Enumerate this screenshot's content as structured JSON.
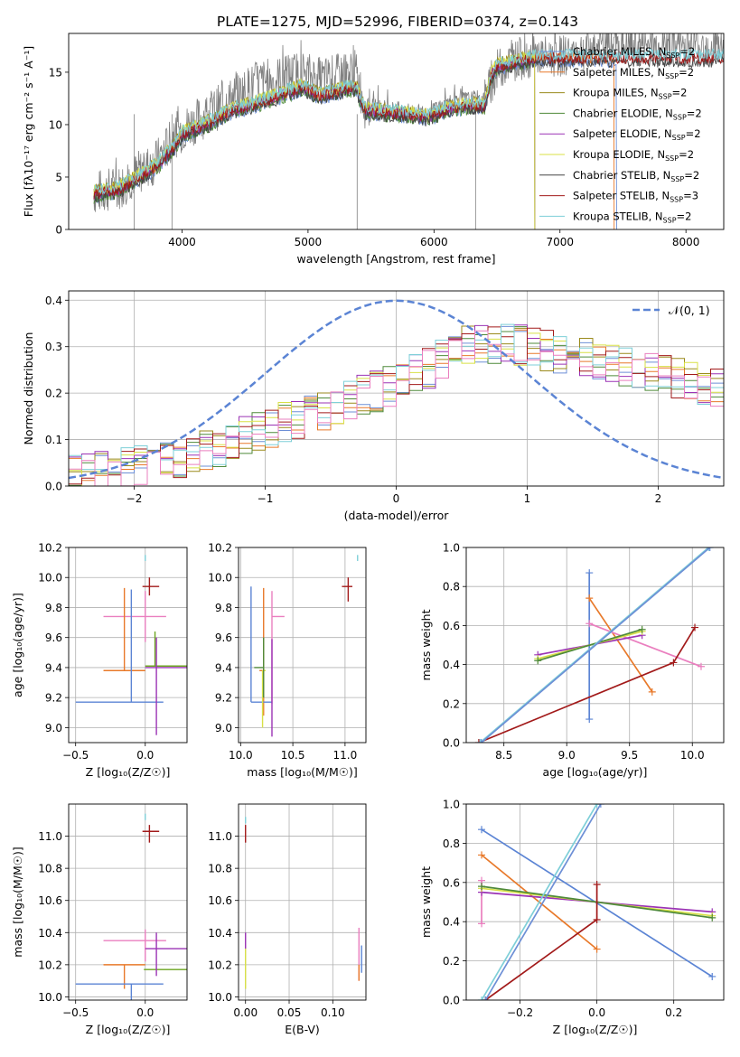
{
  "figure_title": "PLATE=1275, MJD=52996, FIBERID=0374, z=0.143",
  "colors": {
    "chabrier_miles": "#6d8fd6",
    "salpeter_miles": "#e8792a",
    "kroupa_miles": "#9a8a1c",
    "chabrier_elodie": "#4f8a3a",
    "salpeter_elodie": "#9b33b5",
    "kroupa_elodie": "#d8e046",
    "chabrier_stelib": "#444444",
    "salpeter_stelib": "#a21a1a",
    "kroupa_stelib": "#7ecfd8",
    "data": "#808080",
    "pink": "#ea7fbf",
    "gauss": "#5b84d4",
    "olive": "#6ba51f"
  },
  "chart_data": [
    {
      "id": "spectrum",
      "type": "line",
      "xlabel": "wavelength [Angstrom, rest frame]",
      "ylabel": "Flux [fλ10⁻¹⁷ erg cm⁻² s⁻¹ A⁻¹]",
      "xlim": [
        3100,
        8300
      ],
      "ylim": [
        0,
        18.7
      ],
      "xticks": [
        4000,
        5000,
        6000,
        7000,
        8000
      ],
      "yticks": [
        0,
        5,
        10,
        15
      ],
      "grid": false,
      "legend_position": "top-right",
      "data_anchors": {
        "x": [
          3300,
          3500,
          3600,
          3800,
          3950,
          4000,
          4200,
          4400,
          4600,
          4800,
          4950,
          5100,
          5300,
          5380,
          5450,
          5600,
          5800,
          5950,
          6150,
          6350,
          6400,
          6500,
          6600,
          6800,
          7000,
          7200,
          7400
        ],
        "y": [
          3.5,
          4.0,
          5.0,
          6.5,
          9.0,
          9.5,
          11.0,
          12.5,
          14.0,
          14.5,
          15.0,
          14.3,
          14.8,
          15.0,
          11.8,
          11.6,
          11.3,
          11.0,
          12.3,
          12.5,
          12.5,
          15.2,
          16.0,
          16.5,
          16.5,
          17.2,
          17.5
        ]
      },
      "model_anchors": {
        "x": [
          3300,
          3500,
          3600,
          3800,
          3950,
          4000,
          4200,
          4400,
          4600,
          4800,
          4950,
          5100,
          5300,
          5380,
          5450,
          5600,
          5800,
          5950,
          6150,
          6350,
          6400,
          6450,
          6500,
          6700,
          6800
        ],
        "y": [
          3.3,
          3.8,
          4.5,
          6.0,
          8.0,
          9.0,
          10.0,
          11.3,
          12.0,
          12.8,
          13.5,
          12.7,
          13.3,
          13.5,
          11.3,
          11.1,
          10.9,
          10.6,
          11.6,
          11.8,
          11.6,
          14.5,
          15.5,
          16.0,
          16.3
        ]
      },
      "series": [
        {
          "key": "chabrier_miles",
          "legend": "Chabrier MILES, N",
          "sub": "SSP",
          "n": "=2",
          "xmax": 7450
        },
        {
          "key": "salpeter_miles",
          "legend": "Salpeter MILES, N",
          "sub": "SSP",
          "n": "=2",
          "xmax": 7430
        },
        {
          "key": "kroupa_miles",
          "legend": "Kroupa MILES, N",
          "sub": "SSP",
          "n": "=2",
          "xmax": 6800
        },
        {
          "key": "chabrier_elodie",
          "legend": "Chabrier ELODIE, N",
          "sub": "SSP",
          "n": "=2",
          "xmax": 6800
        },
        {
          "key": "salpeter_elodie",
          "legend": "Salpeter ELODIE, N",
          "sub": "SSP",
          "n": "=2",
          "xmax": 6800
        },
        {
          "key": "kroupa_elodie",
          "legend": "Kroupa ELODIE, N",
          "sub": "SSP",
          "n": "=2",
          "xmax": 6800
        },
        {
          "key": "chabrier_stelib",
          "legend": "Chabrier STELIB, N",
          "sub": "SSP",
          "n": "=2",
          "xmax": 8300
        },
        {
          "key": "salpeter_stelib",
          "legend": "Salpeter STELIB, N",
          "sub": "SSP",
          "n": "=3",
          "xmax": 8300
        },
        {
          "key": "kroupa_stelib",
          "legend": "Kroupa STELIB, N",
          "sub": "SSP",
          "n": "=2",
          "xmax": 8300
        }
      ]
    },
    {
      "id": "residuals",
      "type": "line",
      "xlabel": "(data-model)/error",
      "ylabel": "Normed distribution",
      "xlim": [
        -2.5,
        2.5
      ],
      "ylim": [
        0,
        0.42
      ],
      "xticks": [
        -2,
        -1,
        0,
        1,
        2
      ],
      "yticks": [
        0.0,
        0.1,
        0.2,
        0.3,
        0.4
      ],
      "grid": true,
      "legend_position": "top-right",
      "gauss_legend": "𝒩(0, 1)",
      "bin_width": 0.1,
      "base_profile": {
        "x": [
          -2.5,
          -2.0,
          -1.5,
          -1.0,
          -0.5,
          0.0,
          0.3,
          0.5,
          0.8,
          1.0,
          1.5,
          2.0,
          2.5
        ],
        "y": [
          0.02,
          0.04,
          0.07,
          0.12,
          0.17,
          0.22,
          0.26,
          0.3,
          0.31,
          0.3,
          0.27,
          0.24,
          0.21
        ]
      }
    },
    {
      "id": "age_vs_z",
      "type": "scatter",
      "xlabel": "Z [log₁₀(Z/Z☉)]",
      "ylabel": "age  [log₁₀(age/yr)]",
      "xlim": [
        -0.55,
        0.3
      ],
      "ylim": [
        8.9,
        10.2
      ],
      "xticks": [
        -0.5,
        0.0
      ],
      "yticks": [
        9.0,
        9.2,
        9.4,
        9.6,
        9.8,
        10.0,
        10.2
      ],
      "grid": true,
      "points": [
        {
          "c": "pink",
          "x": 0.0,
          "xerr": [
            0.3,
            0.15
          ],
          "y": 9.74,
          "yerr": [
            0.17,
            0.17
          ]
        },
        {
          "c": "salpeter_miles",
          "x": -0.15,
          "xerr": [
            0.15,
            0.15
          ],
          "y": 9.38,
          "yerr": [
            0.0,
            0.55
          ]
        },
        {
          "c": "gauss",
          "x": -0.1,
          "xerr": [
            0.4,
            0.23
          ],
          "y": 9.17,
          "yerr": [
            0.0,
            0.75
          ]
        },
        {
          "c": "olive",
          "x": 0.07,
          "xerr": [
            0.07,
            0.25
          ],
          "y": 9.41,
          "yerr": [
            0.0,
            0.23
          ]
        },
        {
          "c": "salpeter_elodie",
          "x": 0.08,
          "xerr": [
            0.08,
            0.22
          ],
          "y": 9.4,
          "yerr": [
            0.45,
            0.2
          ]
        },
        {
          "c": "salpeter_stelib",
          "x": 0.03,
          "xerr": [
            0.05,
            0.07
          ],
          "y": 9.94,
          "yerr": [
            0.06,
            0.06
          ]
        },
        {
          "c": "kroupa_stelib",
          "x": 0.0,
          "xerr": [
            0.0,
            0.0
          ],
          "y": 10.13,
          "yerr": [
            0.02,
            0.02
          ]
        }
      ]
    },
    {
      "id": "age_vs_mass",
      "type": "scatter",
      "xlabel": "mass [log₁₀(M/M☉)]",
      "ylabel": "",
      "xlim": [
        9.98,
        11.2
      ],
      "ylim": [
        8.9,
        10.2
      ],
      "xticks": [
        10.0,
        10.5,
        11.0
      ],
      "yticks": [
        9.0,
        9.2,
        9.4,
        9.6,
        9.8,
        10.0,
        10.2
      ],
      "grid": true,
      "points": [
        {
          "c": "pink",
          "x": 10.3,
          "xerr": [
            0.0,
            0.12
          ],
          "y": 9.74,
          "yerr": [
            0.58,
            0.17
          ]
        },
        {
          "c": "salpeter_miles",
          "x": 10.22,
          "xerr": [
            0.04,
            0.0
          ],
          "y": 9.38,
          "yerr": [
            0.3,
            0.55
          ]
        },
        {
          "c": "gauss",
          "x": 10.1,
          "xerr": [
            0.0,
            0.2
          ],
          "y": 9.17,
          "yerr": [
            0.0,
            0.77
          ]
        },
        {
          "c": "kroupa_elodie",
          "x": 10.21,
          "xerr": [
            0.0,
            0.03
          ],
          "y": 9.38,
          "yerr": [
            0.38,
            0.0
          ]
        },
        {
          "c": "chabrier_elodie",
          "x": 10.22,
          "xerr": [
            0.09,
            0.0
          ],
          "y": 9.4,
          "yerr": [
            0.2,
            0.2
          ]
        },
        {
          "c": "salpeter_elodie",
          "x": 10.3,
          "xerr": [
            0.0,
            0.0
          ],
          "y": 9.4,
          "yerr": [
            0.46,
            0.19
          ]
        },
        {
          "c": "salpeter_stelib",
          "x": 11.03,
          "xerr": [
            0.06,
            0.04
          ],
          "y": 9.94,
          "yerr": [
            0.1,
            0.06
          ]
        },
        {
          "c": "kroupa_stelib",
          "x": 11.12,
          "xerr": [
            0.0,
            0.0
          ],
          "y": 10.13,
          "yerr": [
            0.02,
            0.02
          ]
        }
      ]
    },
    {
      "id": "weight_vs_age",
      "type": "line",
      "xlabel": "age  [log₁₀(age/yr)]",
      "ylabel": "mass weight",
      "xlim": [
        8.2,
        10.25
      ],
      "ylim": [
        0,
        1
      ],
      "xticks": [
        8.5,
        9.0,
        9.5,
        10.0
      ],
      "yticks": [
        0.0,
        0.2,
        0.4,
        0.6,
        0.8,
        1.0
      ],
      "grid": true,
      "segments": [
        {
          "c": "gauss",
          "x": [
            9.18,
            9.18
          ],
          "y": [
            0.12,
            0.87
          ]
        },
        {
          "c": "salpeter_miles",
          "x": [
            9.18,
            9.68
          ],
          "y": [
            0.74,
            0.26
          ]
        },
        {
          "c": "pink",
          "x": [
            9.18,
            10.07
          ],
          "y": [
            0.61,
            0.39
          ]
        },
        {
          "c": "salpeter_elodie",
          "x": [
            8.77,
            9.6
          ],
          "y": [
            0.45,
            0.55
          ]
        },
        {
          "c": "kroupa_elodie",
          "x": [
            8.77,
            9.6
          ],
          "y": [
            0.43,
            0.57
          ]
        },
        {
          "c": "chabrier_elodie",
          "x": [
            8.77,
            9.6
          ],
          "y": [
            0.42,
            0.58
          ]
        },
        {
          "c": "salpeter_stelib",
          "x": [
            8.3,
            9.85,
            10.02
          ],
          "y": [
            0.0,
            0.41,
            0.59
          ]
        },
        {
          "c": "kroupa_stelib",
          "x": [
            8.31,
            10.13
          ],
          "y": [
            0.0,
            1.0
          ]
        },
        {
          "c": "chabrier_miles",
          "x": [
            8.32,
            10.14
          ],
          "y": [
            0.0,
            1.0
          ]
        }
      ]
    },
    {
      "id": "mass_vs_z",
      "type": "scatter",
      "xlabel": "Z [log₁₀(Z/Z☉)]",
      "ylabel": "mass [log₁₀(M/M☉)]",
      "xlim": [
        -0.55,
        0.3
      ],
      "ylim": [
        9.98,
        11.2
      ],
      "xticks": [
        -0.5,
        0.0
      ],
      "yticks": [
        10.0,
        10.2,
        10.4,
        10.6,
        10.8,
        11.0
      ],
      "grid": true,
      "points": [
        {
          "c": "pink",
          "x": 0.0,
          "xerr": [
            0.3,
            0.15
          ],
          "y": 10.35,
          "yerr": [
            0.13,
            0.07
          ]
        },
        {
          "c": "salpeter_miles",
          "x": -0.15,
          "xerr": [
            0.15,
            0.15
          ],
          "y": 10.2,
          "yerr": [
            0.15,
            0.0
          ]
        },
        {
          "c": "gauss",
          "x": -0.1,
          "xerr": [
            0.4,
            0.23
          ],
          "y": 10.08,
          "yerr": [
            0.1,
            0.0
          ]
        },
        {
          "c": "olive",
          "x": 0.07,
          "xerr": [
            0.08,
            0.25
          ],
          "y": 10.17,
          "yerr": [
            0.0,
            0.0
          ]
        },
        {
          "c": "salpeter_elodie",
          "x": 0.08,
          "xerr": [
            0.08,
            0.22
          ],
          "y": 10.3,
          "yerr": [
            0.17,
            0.1
          ]
        },
        {
          "c": "salpeter_stelib",
          "x": 0.03,
          "xerr": [
            0.05,
            0.07
          ],
          "y": 11.03,
          "yerr": [
            0.07,
            0.04
          ]
        },
        {
          "c": "kroupa_stelib",
          "x": 0.0,
          "xerr": [
            0.0,
            0.0
          ],
          "y": 11.12,
          "yerr": [
            0.02,
            0.02
          ]
        }
      ]
    },
    {
      "id": "mass_vs_ebv",
      "type": "scatter",
      "xlabel": "E(B-V)",
      "ylabel": "",
      "xlim": [
        -0.008,
        0.138
      ],
      "ylim": [
        9.98,
        11.2
      ],
      "xticks": [
        0.0,
        0.05,
        0.1
      ],
      "yticks": [
        10.0,
        10.2,
        10.4,
        10.6,
        10.8,
        11.0
      ],
      "grid": true,
      "points": [
        {
          "c": "pink",
          "x": 0.13,
          "xerr": [
            0.0,
            0.0
          ],
          "y": 10.35,
          "yerr": [
            0.25,
            0.08
          ]
        },
        {
          "c": "salpeter_miles",
          "x": 0.13,
          "xerr": [
            0.0,
            0.0
          ],
          "y": 10.2,
          "yerr": [
            0.1,
            0.0
          ]
        },
        {
          "c": "gauss",
          "x": 0.133,
          "xerr": [
            0.0,
            0.0
          ],
          "y": 10.2,
          "yerr": [
            0.05,
            0.12
          ]
        },
        {
          "c": "salpeter_elodie",
          "x": 0.0,
          "xerr": [
            0.0,
            0.0
          ],
          "y": 10.35,
          "yerr": [
            0.05,
            0.05
          ]
        },
        {
          "c": "kroupa_elodie",
          "x": 0.0,
          "xerr": [
            0.0,
            0.0
          ],
          "y": 10.2,
          "yerr": [
            0.15,
            0.1
          ]
        },
        {
          "c": "salpeter_stelib",
          "x": 0.0,
          "xerr": [
            0.0,
            0.0
          ],
          "y": 11.03,
          "yerr": [
            0.07,
            0.04
          ]
        },
        {
          "c": "kroupa_stelib",
          "x": 0.0,
          "xerr": [
            0.0,
            0.0
          ],
          "y": 11.1,
          "yerr": [
            0.02,
            0.02
          ]
        }
      ]
    },
    {
      "id": "weight_vs_z",
      "type": "line",
      "xlabel": "Z [log₁₀(Z/Z☉)]",
      "ylabel": "mass weight",
      "xlim": [
        -0.34,
        0.33
      ],
      "ylim": [
        0,
        1
      ],
      "xticks": [
        -0.2,
        0.0,
        0.2
      ],
      "yticks": [
        0.0,
        0.2,
        0.4,
        0.6,
        0.8,
        1.0
      ],
      "grid": true,
      "segments": [
        {
          "c": "gauss",
          "x": [
            -0.3,
            0.3
          ],
          "y": [
            0.87,
            0.12
          ]
        },
        {
          "c": "salpeter_miles",
          "x": [
            -0.3,
            0.0
          ],
          "y": [
            0.74,
            0.26
          ]
        },
        {
          "c": "pink",
          "x": [
            -0.3,
            -0.3
          ],
          "y": [
            0.39,
            0.61
          ]
        },
        {
          "c": "salpeter_elodie",
          "x": [
            -0.3,
            0.3
          ],
          "y": [
            0.55,
            0.45
          ]
        },
        {
          "c": "kroupa_elodie",
          "x": [
            -0.3,
            0.3
          ],
          "y": [
            0.57,
            0.43
          ]
        },
        {
          "c": "chabrier_elodie",
          "x": [
            -0.3,
            0.3
          ],
          "y": [
            0.58,
            0.42
          ]
        },
        {
          "c": "salpeter_stelib",
          "x": [
            -0.29,
            0.0,
            0.0
          ],
          "y": [
            0.0,
            0.41,
            0.59
          ]
        },
        {
          "c": "kroupa_stelib",
          "x": [
            -0.3,
            0.0
          ],
          "y": [
            0.0,
            1.0
          ]
        },
        {
          "c": "chabrier_miles",
          "x": [
            -0.29,
            0.01
          ],
          "y": [
            0.0,
            1.0
          ]
        }
      ]
    }
  ]
}
